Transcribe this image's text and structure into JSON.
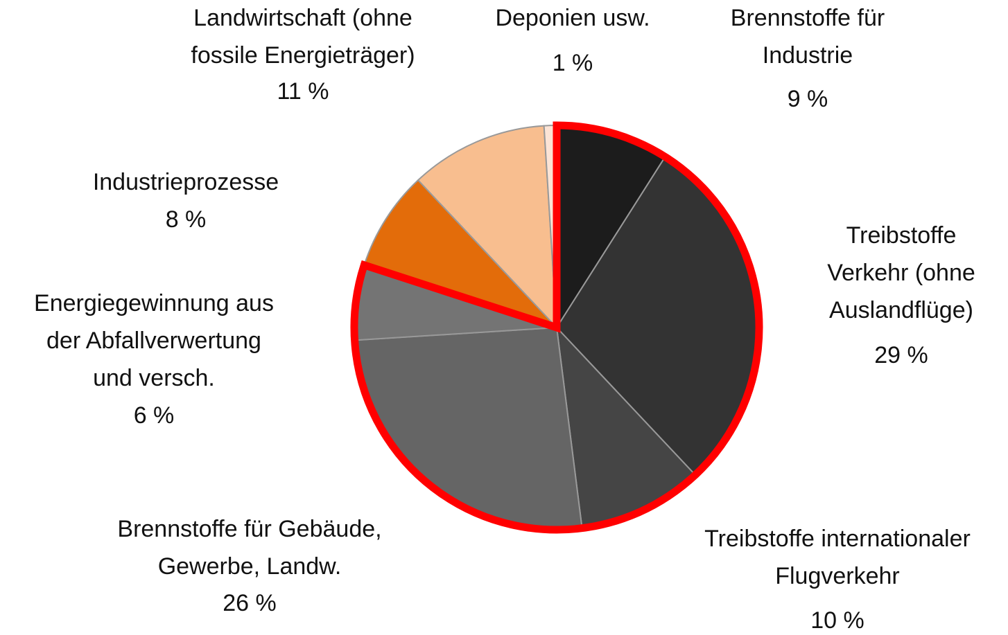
{
  "chart_data": {
    "type": "pie",
    "categories": [
      [
        "Brennstoffe für",
        "Industrie"
      ],
      [
        "Treibstoffe",
        "Verkehr (ohne",
        "Auslandflüge)"
      ],
      [
        "Treibstoffe internationaler",
        "Flugverkehr"
      ],
      [
        "Brennstoffe für Gebäude,",
        "Gewerbe, Landw."
      ],
      [
        "Energiegewinnung aus",
        "der Abfallverwertung",
        "und versch."
      ],
      [
        "Industrieprozesse"
      ],
      [
        "Landwirtschaft (ohne",
        "fossile Energieträger)"
      ],
      [
        "Deponien usw."
      ]
    ],
    "values": [
      9,
      29,
      10,
      26,
      6,
      8,
      11,
      1
    ],
    "value_labels": [
      "9 %",
      "29 %",
      "10 %",
      "26 %",
      "6 %",
      "8 %",
      "11 %",
      "1 %"
    ],
    "colors": [
      "#1c1c1c",
      "#333333",
      "#454545",
      "#656565",
      "#747474",
      "#e36c0a",
      "#f8be8f",
      "#fce4d6"
    ],
    "highlight": {
      "indices": [
        0,
        1,
        2,
        3,
        4
      ],
      "color": "#ff0000"
    }
  }
}
